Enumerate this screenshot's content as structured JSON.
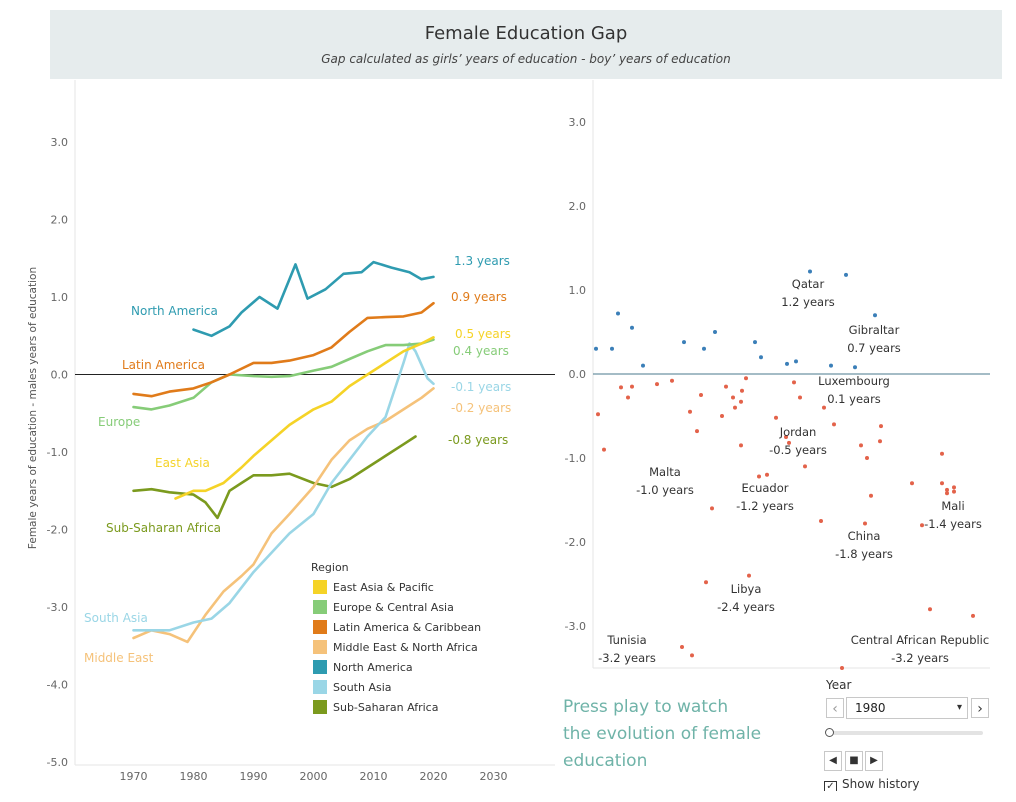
{
  "header": {
    "title": "Female Education Gap",
    "subtitle": "Gap calculated as girls’ years of  education - boy’ years of education"
  },
  "chart_data": [
    {
      "type": "line",
      "title": "",
      "ylabel": "Female years of education - males years of education",
      "xlabel": "",
      "xlim": [
        1960,
        2040
      ],
      "ylim": [
        -5.0,
        3.0
      ],
      "x_ticks": [
        "1970",
        "1980",
        "1990",
        "2000",
        "2010",
        "2020",
        "2030"
      ],
      "y_ticks": [
        "3.0",
        "2.0",
        "1.0",
        "0.0",
        "-1.0",
        "-2.0",
        "-3.0",
        "-4.0",
        "-5.0"
      ],
      "grid": false,
      "reference_line": 0,
      "legend_title": "Region",
      "legend_position": "bottom-right",
      "series": [
        {
          "name": "East Asia & Pacific",
          "label": "East Asia",
          "end_label": "0.5 years",
          "color": "#f5d327",
          "x": [
            1977,
            1980,
            1982,
            1985,
            1988,
            1990,
            1993,
            1996,
            2000,
            2003,
            2006,
            2009,
            2012,
            2015,
            2018,
            2020
          ],
          "y": [
            -1.6,
            -1.5,
            -1.5,
            -1.4,
            -1.2,
            -1.05,
            -0.85,
            -0.65,
            -0.45,
            -0.35,
            -0.15,
            0.0,
            0.15,
            0.3,
            0.4,
            0.48
          ]
        },
        {
          "name": "Europe & Central Asia",
          "label": "Europe",
          "end_label": "0.4 years",
          "color": "#86cc78",
          "x": [
            1970,
            1973,
            1976,
            1980,
            1983,
            1986,
            1990,
            1993,
            1996,
            2000,
            2003,
            2006,
            2009,
            2012,
            2015,
            2018,
            2020
          ],
          "y": [
            -0.42,
            -0.45,
            -0.4,
            -0.3,
            -0.1,
            0.0,
            -0.02,
            -0.03,
            -0.02,
            0.05,
            0.1,
            0.2,
            0.3,
            0.38,
            0.38,
            0.4,
            0.45
          ]
        },
        {
          "name": "Latin America & Caribbean",
          "label": "Latin America",
          "end_label": "0.9 years",
          "color": "#e07b1a",
          "x": [
            1970,
            1973,
            1976,
            1980,
            1983,
            1986,
            1990,
            1993,
            1996,
            2000,
            2003,
            2006,
            2009,
            2012,
            2015,
            2018,
            2020
          ],
          "y": [
            -0.25,
            -0.28,
            -0.22,
            -0.18,
            -0.1,
            0.0,
            0.15,
            0.15,
            0.18,
            0.25,
            0.35,
            0.55,
            0.73,
            0.74,
            0.75,
            0.8,
            0.92
          ]
        },
        {
          "name": "Middle East & North Africa",
          "label": "Middle East",
          "end_label": "-0.2 years",
          "color": "#f5c27a",
          "x": [
            1970,
            1973,
            1976,
            1979,
            1982,
            1985,
            1988,
            1990,
            1993,
            1996,
            2000,
            2003,
            2006,
            2009,
            2012,
            2015,
            2018,
            2020
          ],
          "y": [
            -3.4,
            -3.3,
            -3.35,
            -3.45,
            -3.1,
            -2.8,
            -2.6,
            -2.45,
            -2.05,
            -1.8,
            -1.45,
            -1.1,
            -0.85,
            -0.7,
            -0.6,
            -0.45,
            -0.3,
            -0.18
          ]
        },
        {
          "name": "North America",
          "label": "North America",
          "end_label": "1.3 years",
          "color": "#2e9bb0",
          "x": [
            1980,
            1983,
            1986,
            1988,
            1991,
            1994,
            1997,
            1999,
            2002,
            2005,
            2008,
            2010,
            2013,
            2016,
            2018,
            2020
          ],
          "y": [
            0.58,
            0.5,
            0.62,
            0.8,
            1.0,
            0.85,
            1.42,
            0.98,
            1.1,
            1.3,
            1.32,
            1.45,
            1.38,
            1.32,
            1.23,
            1.26
          ]
        },
        {
          "name": "South Asia",
          "label": "South Asia",
          "end_label": "-0.1 years",
          "color": "#9ad6e6",
          "x": [
            1970,
            1973,
            1976,
            1980,
            1983,
            1986,
            1990,
            1993,
            1996,
            2000,
            2003,
            2006,
            2009,
            2012,
            2015,
            2016,
            2017,
            2019,
            2020
          ],
          "y": [
            -3.3,
            -3.3,
            -3.3,
            -3.2,
            -3.15,
            -2.95,
            -2.55,
            -2.3,
            -2.05,
            -1.8,
            -1.4,
            -1.1,
            -0.8,
            -0.55,
            0.15,
            0.4,
            0.3,
            -0.05,
            -0.12
          ]
        },
        {
          "name": "Sub-Saharan Africa",
          "label": "Sub-Saharan Africa",
          "end_label": "-0.8 years",
          "color": "#7b9a1e",
          "x": [
            1970,
            1973,
            1976,
            1980,
            1982,
            1984,
            1986,
            1988,
            1990,
            1993,
            1996,
            2000,
            2003,
            2006,
            2009,
            2012,
            2015,
            2017
          ],
          "y": [
            -1.5,
            -1.48,
            -1.52,
            -1.55,
            -1.65,
            -1.85,
            -1.5,
            -1.4,
            -1.3,
            -1.3,
            -1.28,
            -1.4,
            -1.45,
            -1.35,
            -1.2,
            -1.05,
            -0.9,
            -0.8
          ]
        }
      ]
    },
    {
      "type": "scatter",
      "title": "",
      "ylim": [
        -3.4,
        3.4
      ],
      "y_ticks": [
        "3.0",
        "2.0",
        "1.0",
        "0.0",
        "-1.0",
        "-2.0",
        "-3.0"
      ],
      "reference_line": 0,
      "positive_color": "#3b7fb8",
      "negative_color": "#e3624a",
      "annotations": [
        {
          "country": "Qatar",
          "value": "1.2 years"
        },
        {
          "country": "Gibraltar",
          "value": "0.7 years"
        },
        {
          "country": "Luxembourg",
          "value": "0.1 years"
        },
        {
          "country": "Jordan",
          "value": "-0.5 years"
        },
        {
          "country": "Malta",
          "value": "-1.0 years"
        },
        {
          "country": "Ecuador",
          "value": "-1.2 years"
        },
        {
          "country": "Mali",
          "value": "-1.4 years"
        },
        {
          "country": "China",
          "value": "-1.8 years"
        },
        {
          "country": "Libya",
          "value": "-2.4 years"
        },
        {
          "country": "Tunisia",
          "value": "-3.2 years"
        },
        {
          "country": "Central African Republic",
          "value": "-3.2 years"
        }
      ],
      "points": [
        0.3,
        0.3,
        0.72,
        0.55,
        0.1,
        0.38,
        0.3,
        0.5,
        0.38,
        0.2,
        0.12,
        0.15,
        1.22,
        0.1,
        1.18,
        0.7,
        0.08,
        -0.48,
        -0.9,
        -0.16,
        -0.28,
        -0.15,
        -0.12,
        -0.08,
        -0.45,
        -0.68,
        -0.25,
        -0.5,
        -0.4,
        -0.15,
        -0.28,
        -0.2,
        -0.33,
        -0.05,
        -0.52,
        -0.82,
        -0.28,
        -0.6,
        -1.1,
        -1.6,
        -0.85,
        -0.4,
        -1.2,
        -0.85,
        -1.75,
        -1.0,
        -0.62,
        -1.45,
        -0.8,
        -1.3,
        -1.78,
        -1.42,
        -1.3,
        -1.35,
        -1.8,
        -0.95,
        -1.38,
        -1.4,
        -2.48,
        -2.4,
        -3.25,
        -3.35,
        -3.5,
        -2.8,
        -2.88,
        -0.1,
        -0.75,
        -1.22
      ]
    }
  ],
  "controls": {
    "promo": [
      "Press play to watch",
      "the evolution of female",
      "education"
    ],
    "year_label": "Year",
    "year_value": "1980",
    "prev_glyph": "‹",
    "next_glyph": "›",
    "caret": "▾",
    "back_glyph": "◀",
    "stop_glyph": "■",
    "play_glyph": "▶",
    "check_glyph": "✓",
    "history_label": "Show history",
    "slider_position": 0.0
  }
}
